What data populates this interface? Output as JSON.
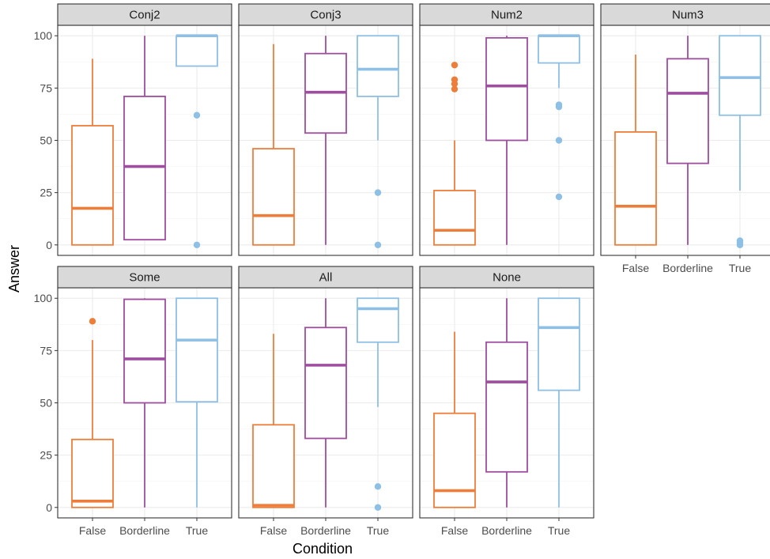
{
  "chart_data": {
    "type": "boxplot",
    "xlabel": "Condition",
    "ylabel": "Answer",
    "ylim": [
      -5,
      105
    ],
    "yticks": [
      0,
      25,
      50,
      75,
      100
    ],
    "categories": [
      "False",
      "Borderline",
      "True"
    ],
    "colors": {
      "False": "#ee7d3a",
      "Borderline": "#9f4d9f",
      "True": "#8ebfe5"
    },
    "grid": true,
    "panels": [
      {
        "name": "Conj2",
        "boxes": [
          {
            "condition": "False",
            "whisker_low": 0,
            "q1": 0,
            "median": 17.5,
            "q3": 57,
            "whisker_high": 89,
            "outliers": []
          },
          {
            "condition": "Borderline",
            "whisker_low": 2.5,
            "q1": 2.5,
            "median": 37.5,
            "q3": 71,
            "whisker_high": 100,
            "outliers": []
          },
          {
            "condition": "True",
            "whisker_low": 85.5,
            "q1": 85.5,
            "median": 100,
            "q3": 100,
            "whisker_high": 100,
            "outliers": [
              62,
              0
            ]
          }
        ]
      },
      {
        "name": "Conj3",
        "boxes": [
          {
            "condition": "False",
            "whisker_low": 0,
            "q1": 0,
            "median": 14,
            "q3": 46,
            "whisker_high": 96,
            "outliers": []
          },
          {
            "condition": "Borderline",
            "whisker_low": 0,
            "q1": 53.5,
            "median": 73,
            "q3": 91.5,
            "whisker_high": 100,
            "outliers": []
          },
          {
            "condition": "True",
            "whisker_low": 50,
            "q1": 71,
            "median": 84,
            "q3": 100,
            "whisker_high": 100,
            "outliers": [
              25,
              0
            ]
          }
        ]
      },
      {
        "name": "Num2",
        "boxes": [
          {
            "condition": "False",
            "whisker_low": 0,
            "q1": 0,
            "median": 7,
            "q3": 26,
            "whisker_high": 50,
            "outliers": [
              86,
              79,
              77,
              74.5
            ]
          },
          {
            "condition": "Borderline",
            "whisker_low": 0,
            "q1": 50,
            "median": 76,
            "q3": 99,
            "whisker_high": 100,
            "outliers": []
          },
          {
            "condition": "True",
            "whisker_low": 75,
            "q1": 87,
            "median": 100,
            "q3": 100,
            "whisker_high": 100,
            "outliers": [
              67,
              66,
              50,
              23
            ]
          }
        ]
      },
      {
        "name": "Num3",
        "boxes": [
          {
            "condition": "False",
            "whisker_low": 0,
            "q1": 0,
            "median": 18.5,
            "q3": 54,
            "whisker_high": 91,
            "outliers": []
          },
          {
            "condition": "Borderline",
            "whisker_low": 0,
            "q1": 39,
            "median": 72.5,
            "q3": 89,
            "whisker_high": 100,
            "outliers": []
          },
          {
            "condition": "True",
            "whisker_low": 26,
            "q1": 62,
            "median": 80,
            "q3": 100,
            "whisker_high": 100,
            "outliers": [
              2,
              1,
              0
            ]
          }
        ]
      },
      {
        "name": "Some",
        "boxes": [
          {
            "condition": "False",
            "whisker_low": 0,
            "q1": 0,
            "median": 3,
            "q3": 32.5,
            "whisker_high": 80,
            "outliers": [
              89
            ]
          },
          {
            "condition": "Borderline",
            "whisker_low": 0,
            "q1": 50,
            "median": 71,
            "q3": 99.5,
            "whisker_high": 100,
            "outliers": []
          },
          {
            "condition": "True",
            "whisker_low": 0,
            "q1": 50.5,
            "median": 80,
            "q3": 100,
            "whisker_high": 100,
            "outliers": []
          }
        ]
      },
      {
        "name": "All",
        "boxes": [
          {
            "condition": "False",
            "whisker_low": 0,
            "q1": 0,
            "median": 1,
            "q3": 39.5,
            "whisker_high": 83,
            "outliers": []
          },
          {
            "condition": "Borderline",
            "whisker_low": 0,
            "q1": 33,
            "median": 68,
            "q3": 86,
            "whisker_high": 100,
            "outliers": []
          },
          {
            "condition": "True",
            "whisker_low": 48,
            "q1": 79,
            "median": 95,
            "q3": 100,
            "whisker_high": 100,
            "outliers": [
              10,
              0
            ]
          }
        ]
      },
      {
        "name": "None",
        "boxes": [
          {
            "condition": "False",
            "whisker_low": 0,
            "q1": 0,
            "median": 8,
            "q3": 45,
            "whisker_high": 84,
            "outliers": []
          },
          {
            "condition": "Borderline",
            "whisker_low": 0,
            "q1": 17,
            "median": 60,
            "q3": 79,
            "whisker_high": 100,
            "outliers": []
          },
          {
            "condition": "True",
            "whisker_low": 0,
            "q1": 56,
            "median": 86,
            "q3": 100,
            "whisker_high": 100,
            "outliers": []
          }
        ]
      }
    ]
  }
}
